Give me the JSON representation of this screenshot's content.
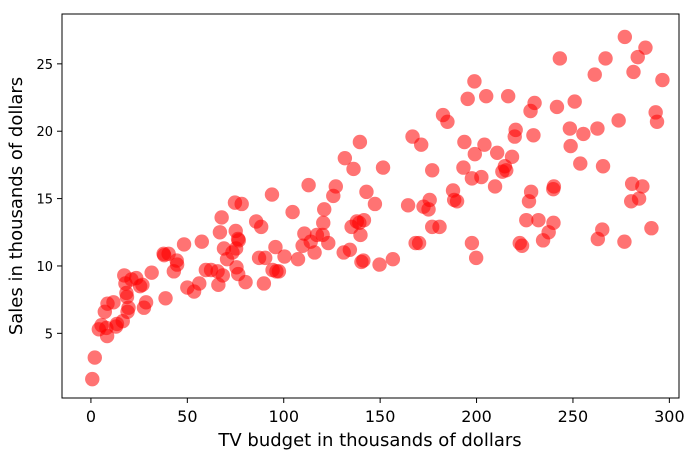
{
  "chart_data": {
    "type": "scatter",
    "title": "",
    "xlabel": "TV budget in thousands of dollars",
    "ylabel": "Sales in thousands of dollars",
    "xlim": [
      -15,
      305
    ],
    "ylim": [
      0.2,
      28.7
    ],
    "xticks": [
      0,
      50,
      100,
      150,
      200,
      250,
      300
    ],
    "yticks": [
      5,
      10,
      15,
      20,
      25
    ],
    "grid": false,
    "marker_color": "#ff0000",
    "marker_opacity": 0.55,
    "series": [
      {
        "points": [
          [
            0.7,
            1.6
          ],
          [
            2.0,
            3.2
          ],
          [
            4.1,
            5.3
          ],
          [
            5.5,
            5.6
          ],
          [
            7.2,
            6.6
          ],
          [
            8.0,
            5.4
          ],
          [
            8.4,
            4.8
          ],
          [
            8.6,
            7.2
          ],
          [
            11.7,
            7.3
          ],
          [
            13.0,
            5.5
          ],
          [
            13.5,
            5.7
          ],
          [
            16.5,
            5.9
          ],
          [
            17.3,
            9.3
          ],
          [
            17.9,
            8.7
          ],
          [
            18.4,
            8.0
          ],
          [
            18.7,
            7.7
          ],
          [
            19.0,
            6.6
          ],
          [
            19.5,
            6.9
          ],
          [
            21.0,
            9.0
          ],
          [
            23.5,
            9.1
          ],
          [
            25.5,
            8.5
          ],
          [
            26.7,
            8.6
          ],
          [
            27.5,
            6.9
          ],
          [
            28.6,
            7.3
          ],
          [
            31.5,
            9.5
          ],
          [
            37.7,
            10.9
          ],
          [
            38.0,
            10.8
          ],
          [
            38.7,
            7.6
          ],
          [
            40.3,
            10.9
          ],
          [
            43.0,
            9.6
          ],
          [
            44.5,
            10.4
          ],
          [
            44.7,
            10.1
          ],
          [
            48.3,
            11.6
          ],
          [
            50.0,
            8.4
          ],
          [
            53.5,
            8.1
          ],
          [
            56.2,
            8.7
          ],
          [
            57.5,
            11.8
          ],
          [
            59.6,
            9.7
          ],
          [
            62.3,
            9.7
          ],
          [
            65.7,
            9.6
          ],
          [
            66.1,
            8.6
          ],
          [
            66.9,
            12.5
          ],
          [
            67.8,
            13.6
          ],
          [
            68.4,
            9.3
          ],
          [
            69.0,
            11.3
          ],
          [
            70.6,
            10.5
          ],
          [
            73.4,
            11.0
          ],
          [
            74.7,
            14.7
          ],
          [
            75.1,
            12.6
          ],
          [
            75.3,
            11.3
          ],
          [
            75.5,
            9.9
          ],
          [
            76.3,
            12.0
          ],
          [
            76.4,
            9.4
          ],
          [
            76.7,
            11.9
          ],
          [
            78.2,
            14.6
          ],
          [
            80.2,
            8.8
          ],
          [
            85.7,
            13.3
          ],
          [
            87.2,
            10.6
          ],
          [
            88.3,
            12.9
          ],
          [
            89.7,
            8.7
          ],
          [
            90.4,
            10.6
          ],
          [
            93.9,
            15.3
          ],
          [
            94.2,
            9.7
          ],
          [
            95.7,
            11.4
          ],
          [
            96.2,
            9.6
          ],
          [
            97.5,
            9.6
          ],
          [
            100.4,
            10.7
          ],
          [
            104.6,
            14.0
          ],
          [
            107.4,
            10.5
          ],
          [
            109.8,
            11.5
          ],
          [
            110.7,
            12.4
          ],
          [
            112.9,
            16.0
          ],
          [
            114.0,
            11.8
          ],
          [
            116.0,
            11.0
          ],
          [
            117.2,
            12.3
          ],
          [
            120.2,
            12.3
          ],
          [
            120.5,
            13.2
          ],
          [
            121.0,
            14.2
          ],
          [
            123.1,
            11.7
          ],
          [
            125.7,
            15.2
          ],
          [
            127.0,
            15.9
          ],
          [
            131.1,
            11.0
          ],
          [
            131.7,
            18.0
          ],
          [
            134.3,
            11.2
          ],
          [
            135.2,
            12.9
          ],
          [
            136.2,
            17.2
          ],
          [
            137.9,
            13.3
          ],
          [
            139.2,
            13.2
          ],
          [
            139.5,
            19.2
          ],
          [
            139.8,
            12.3
          ],
          [
            140.3,
            10.3
          ],
          [
            141.3,
            10.4
          ],
          [
            141.6,
            13.4
          ],
          [
            142.9,
            15.5
          ],
          [
            147.3,
            14.6
          ],
          [
            149.7,
            10.1
          ],
          [
            151.5,
            17.3
          ],
          [
            156.6,
            10.5
          ],
          [
            164.5,
            14.5
          ],
          [
            166.8,
            19.6
          ],
          [
            168.4,
            11.7
          ],
          [
            170.2,
            11.7
          ],
          [
            171.3,
            19.0
          ],
          [
            172.5,
            14.4
          ],
          [
            175.1,
            14.2
          ],
          [
            175.7,
            14.9
          ],
          [
            177.0,
            17.1
          ],
          [
            177.0,
            12.9
          ],
          [
            180.8,
            12.9
          ],
          [
            182.6,
            21.2
          ],
          [
            184.9,
            20.7
          ],
          [
            187.8,
            15.6
          ],
          [
            188.4,
            14.9
          ],
          [
            189.9,
            14.8
          ],
          [
            193.2,
            17.3
          ],
          [
            193.7,
            19.2
          ],
          [
            195.4,
            22.4
          ],
          [
            197.6,
            11.7
          ],
          [
            197.6,
            16.5
          ],
          [
            198.9,
            23.7
          ],
          [
            199.1,
            18.3
          ],
          [
            199.8,
            10.6
          ],
          [
            202.5,
            16.6
          ],
          [
            204.1,
            19.0
          ],
          [
            205.0,
            22.6
          ],
          [
            209.6,
            15.9
          ],
          [
            210.7,
            18.4
          ],
          [
            213.4,
            17.0
          ],
          [
            214.7,
            17.4
          ],
          [
            215.4,
            17.1
          ],
          [
            216.4,
            22.6
          ],
          [
            218.4,
            18.1
          ],
          [
            219.8,
            19.6
          ],
          [
            220.3,
            20.1
          ],
          [
            222.4,
            11.7
          ],
          [
            223.6,
            11.5
          ],
          [
            225.8,
            13.4
          ],
          [
            227.2,
            14.8
          ],
          [
            228.0,
            21.5
          ],
          [
            228.3,
            15.5
          ],
          [
            229.5,
            19.7
          ],
          [
            230.1,
            22.1
          ],
          [
            232.1,
            13.4
          ],
          [
            234.5,
            11.9
          ],
          [
            237.4,
            12.5
          ],
          [
            239.8,
            15.7
          ],
          [
            239.9,
            13.2
          ],
          [
            240.1,
            15.9
          ],
          [
            241.7,
            21.8
          ],
          [
            243.2,
            25.4
          ],
          [
            248.4,
            20.2
          ],
          [
            248.8,
            18.9
          ],
          [
            250.9,
            22.2
          ],
          [
            253.8,
            17.6
          ],
          [
            255.4,
            19.8
          ],
          [
            261.3,
            24.2
          ],
          [
            262.7,
            20.2
          ],
          [
            262.9,
            12.0
          ],
          [
            265.2,
            12.7
          ],
          [
            265.6,
            17.4
          ],
          [
            266.9,
            25.4
          ],
          [
            273.7,
            20.8
          ],
          [
            276.7,
            11.8
          ],
          [
            276.9,
            27.0
          ],
          [
            280.2,
            14.8
          ],
          [
            280.7,
            16.1
          ],
          [
            281.4,
            24.4
          ],
          [
            283.6,
            25.5
          ],
          [
            284.3,
            15.0
          ],
          [
            286.0,
            15.9
          ],
          [
            287.6,
            26.2
          ],
          [
            290.7,
            12.8
          ],
          [
            292.9,
            21.4
          ],
          [
            293.6,
            20.7
          ],
          [
            296.4,
            23.8
          ]
        ]
      }
    ]
  }
}
